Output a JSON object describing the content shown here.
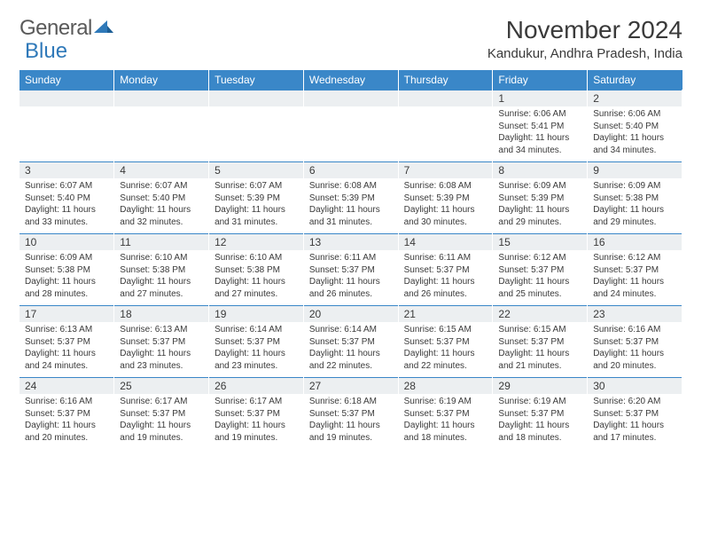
{
  "brand": {
    "part1": "General",
    "part2": "Blue"
  },
  "title": "November 2024",
  "location": "Kandukur, Andhra Pradesh, India",
  "colors": {
    "header_bg": "#3a87c8",
    "header_text": "#ffffff",
    "daynum_bg": "#eceff1",
    "border": "#3a87c8",
    "text": "#3a3a3a",
    "logo_gray": "#5a5a5a",
    "logo_blue": "#2f79b9"
  },
  "weekdays": [
    "Sunday",
    "Monday",
    "Tuesday",
    "Wednesday",
    "Thursday",
    "Friday",
    "Saturday"
  ],
  "weeks": [
    [
      null,
      null,
      null,
      null,
      null,
      {
        "n": "1",
        "sr": "6:06 AM",
        "ss": "5:41 PM",
        "dl": "11 hours and 34 minutes."
      },
      {
        "n": "2",
        "sr": "6:06 AM",
        "ss": "5:40 PM",
        "dl": "11 hours and 34 minutes."
      }
    ],
    [
      {
        "n": "3",
        "sr": "6:07 AM",
        "ss": "5:40 PM",
        "dl": "11 hours and 33 minutes."
      },
      {
        "n": "4",
        "sr": "6:07 AM",
        "ss": "5:40 PM",
        "dl": "11 hours and 32 minutes."
      },
      {
        "n": "5",
        "sr": "6:07 AM",
        "ss": "5:39 PM",
        "dl": "11 hours and 31 minutes."
      },
      {
        "n": "6",
        "sr": "6:08 AM",
        "ss": "5:39 PM",
        "dl": "11 hours and 31 minutes."
      },
      {
        "n": "7",
        "sr": "6:08 AM",
        "ss": "5:39 PM",
        "dl": "11 hours and 30 minutes."
      },
      {
        "n": "8",
        "sr": "6:09 AM",
        "ss": "5:39 PM",
        "dl": "11 hours and 29 minutes."
      },
      {
        "n": "9",
        "sr": "6:09 AM",
        "ss": "5:38 PM",
        "dl": "11 hours and 29 minutes."
      }
    ],
    [
      {
        "n": "10",
        "sr": "6:09 AM",
        "ss": "5:38 PM",
        "dl": "11 hours and 28 minutes."
      },
      {
        "n": "11",
        "sr": "6:10 AM",
        "ss": "5:38 PM",
        "dl": "11 hours and 27 minutes."
      },
      {
        "n": "12",
        "sr": "6:10 AM",
        "ss": "5:38 PM",
        "dl": "11 hours and 27 minutes."
      },
      {
        "n": "13",
        "sr": "6:11 AM",
        "ss": "5:37 PM",
        "dl": "11 hours and 26 minutes."
      },
      {
        "n": "14",
        "sr": "6:11 AM",
        "ss": "5:37 PM",
        "dl": "11 hours and 26 minutes."
      },
      {
        "n": "15",
        "sr": "6:12 AM",
        "ss": "5:37 PM",
        "dl": "11 hours and 25 minutes."
      },
      {
        "n": "16",
        "sr": "6:12 AM",
        "ss": "5:37 PM",
        "dl": "11 hours and 24 minutes."
      }
    ],
    [
      {
        "n": "17",
        "sr": "6:13 AM",
        "ss": "5:37 PM",
        "dl": "11 hours and 24 minutes."
      },
      {
        "n": "18",
        "sr": "6:13 AM",
        "ss": "5:37 PM",
        "dl": "11 hours and 23 minutes."
      },
      {
        "n": "19",
        "sr": "6:14 AM",
        "ss": "5:37 PM",
        "dl": "11 hours and 23 minutes."
      },
      {
        "n": "20",
        "sr": "6:14 AM",
        "ss": "5:37 PM",
        "dl": "11 hours and 22 minutes."
      },
      {
        "n": "21",
        "sr": "6:15 AM",
        "ss": "5:37 PM",
        "dl": "11 hours and 22 minutes."
      },
      {
        "n": "22",
        "sr": "6:15 AM",
        "ss": "5:37 PM",
        "dl": "11 hours and 21 minutes."
      },
      {
        "n": "23",
        "sr": "6:16 AM",
        "ss": "5:37 PM",
        "dl": "11 hours and 20 minutes."
      }
    ],
    [
      {
        "n": "24",
        "sr": "6:16 AM",
        "ss": "5:37 PM",
        "dl": "11 hours and 20 minutes."
      },
      {
        "n": "25",
        "sr": "6:17 AM",
        "ss": "5:37 PM",
        "dl": "11 hours and 19 minutes."
      },
      {
        "n": "26",
        "sr": "6:17 AM",
        "ss": "5:37 PM",
        "dl": "11 hours and 19 minutes."
      },
      {
        "n": "27",
        "sr": "6:18 AM",
        "ss": "5:37 PM",
        "dl": "11 hours and 19 minutes."
      },
      {
        "n": "28",
        "sr": "6:19 AM",
        "ss": "5:37 PM",
        "dl": "11 hours and 18 minutes."
      },
      {
        "n": "29",
        "sr": "6:19 AM",
        "ss": "5:37 PM",
        "dl": "11 hours and 18 minutes."
      },
      {
        "n": "30",
        "sr": "6:20 AM",
        "ss": "5:37 PM",
        "dl": "11 hours and 17 minutes."
      }
    ]
  ],
  "labels": {
    "sunrise": "Sunrise: ",
    "sunset": "Sunset: ",
    "daylight": "Daylight: "
  }
}
